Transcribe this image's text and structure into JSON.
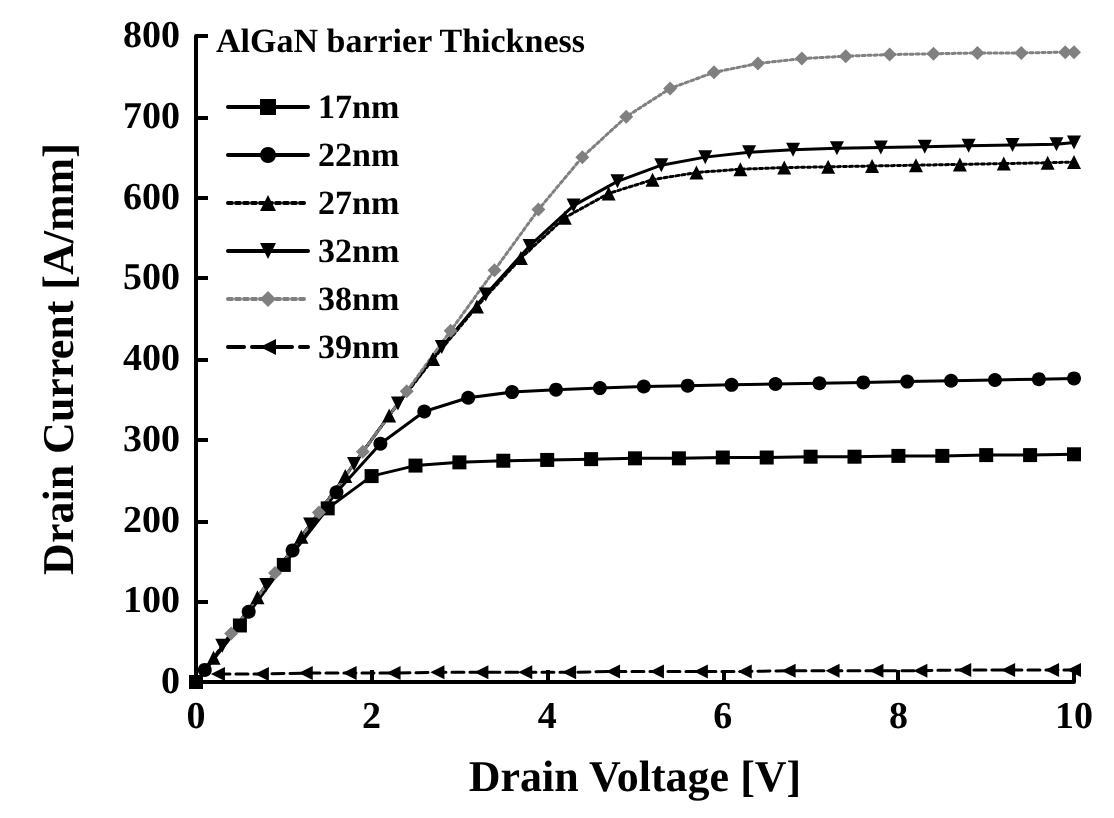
{
  "chart_data": {
    "type": "line",
    "xlabel": "Drain Voltage [V]",
    "ylabel": "Drain Current [A/mm]",
    "legend_title": "AlGaN barrier Thickness",
    "x": [
      0,
      0.5,
      1,
      1.5,
      2,
      2.5,
      3,
      3.5,
      4,
      4.5,
      5,
      5.5,
      6,
      6.5,
      7,
      7.5,
      8,
      8.5,
      9,
      9.5,
      10
    ],
    "xlim": [
      0,
      10
    ],
    "xticks": [
      0,
      2,
      4,
      6,
      8,
      10
    ],
    "ylim": [
      0,
      800
    ],
    "yticks": [
      0,
      100,
      200,
      300,
      400,
      500,
      600,
      700,
      800
    ],
    "grid": false,
    "legend": "top left",
    "series": [
      {
        "name": "17nm",
        "color": "#000000",
        "marker": "square",
        "line_style": "solid",
        "values": [
          0,
          70,
          145,
          215,
          255,
          268,
          272,
          274,
          275,
          276,
          277,
          277,
          278,
          278,
          279,
          279,
          280,
          280,
          281,
          281,
          282
        ]
      },
      {
        "name": "22nm",
        "color": "#000000",
        "marker": "circle",
        "line_style": "solid",
        "x": [
          0.1,
          0.6,
          1.1,
          1.6,
          2.1,
          2.6,
          3.1,
          3.6,
          4.1,
          4.6,
          5.1,
          5.6,
          6.1,
          6.6,
          7.1,
          7.6,
          8.1,
          8.6,
          9.1,
          9.6,
          10
        ],
        "values": [
          15,
          87,
          163,
          235,
          295,
          335,
          352,
          359,
          362,
          364,
          366,
          367,
          368,
          369,
          370,
          371,
          372,
          373,
          374,
          375,
          376
        ]
      },
      {
        "name": "27nm",
        "color": "#000000",
        "marker": "triangle",
        "line_style": "dotted",
        "x": [
          0.2,
          0.7,
          1.2,
          1.7,
          2.2,
          2.7,
          3.2,
          3.7,
          4.2,
          4.7,
          5.2,
          5.7,
          6.2,
          6.7,
          7.2,
          7.7,
          8.2,
          8.7,
          9.2,
          9.7,
          10
        ],
        "values": [
          30,
          105,
          180,
          255,
          330,
          400,
          465,
          525,
          575,
          605,
          622,
          631,
          635,
          637,
          638,
          639,
          640,
          641,
          642,
          643,
          644
        ]
      },
      {
        "name": "32nm",
        "color": "#000000",
        "marker": "triangle-down",
        "line_style": "solid",
        "x": [
          0.3,
          0.8,
          1.3,
          1.8,
          2.3,
          2.8,
          3.3,
          3.8,
          4.3,
          4.8,
          5.3,
          5.8,
          6.3,
          6.8,
          7.3,
          7.8,
          8.3,
          8.8,
          9.3,
          9.8,
          10
        ],
        "values": [
          45,
          120,
          195,
          270,
          345,
          415,
          480,
          540,
          590,
          620,
          640,
          650,
          656,
          659,
          661,
          662,
          663,
          664,
          665,
          666,
          668
        ]
      },
      {
        "name": "38nm",
        "color": "#808080",
        "marker": "diamond",
        "line_style": "dotted",
        "x": [
          0.4,
          0.9,
          1.4,
          1.9,
          2.4,
          2.9,
          3.4,
          3.9,
          4.4,
          4.9,
          5.4,
          5.9,
          6.4,
          6.9,
          7.4,
          7.9,
          8.4,
          8.9,
          9.4,
          9.9,
          10
        ],
        "values": [
          60,
          135,
          210,
          285,
          360,
          435,
          510,
          585,
          650,
          700,
          735,
          755,
          766,
          772,
          775,
          777,
          778,
          779,
          779,
          780,
          780
        ]
      },
      {
        "name": "39nm",
        "color": "#000000",
        "marker": "triangle-left",
        "line_style": "dashed",
        "x": [
          0.25,
          0.75,
          1.25,
          1.75,
          2.25,
          2.75,
          3.25,
          3.75,
          4.25,
          4.75,
          5.25,
          5.75,
          6.25,
          6.75,
          7.25,
          7.75,
          8.25,
          8.75,
          9.25,
          9.75,
          10
        ],
        "values": [
          10,
          10,
          11,
          11,
          11,
          12,
          12,
          12,
          12,
          13,
          13,
          13,
          13,
          14,
          14,
          14,
          14,
          15,
          15,
          15,
          15
        ]
      }
    ]
  }
}
